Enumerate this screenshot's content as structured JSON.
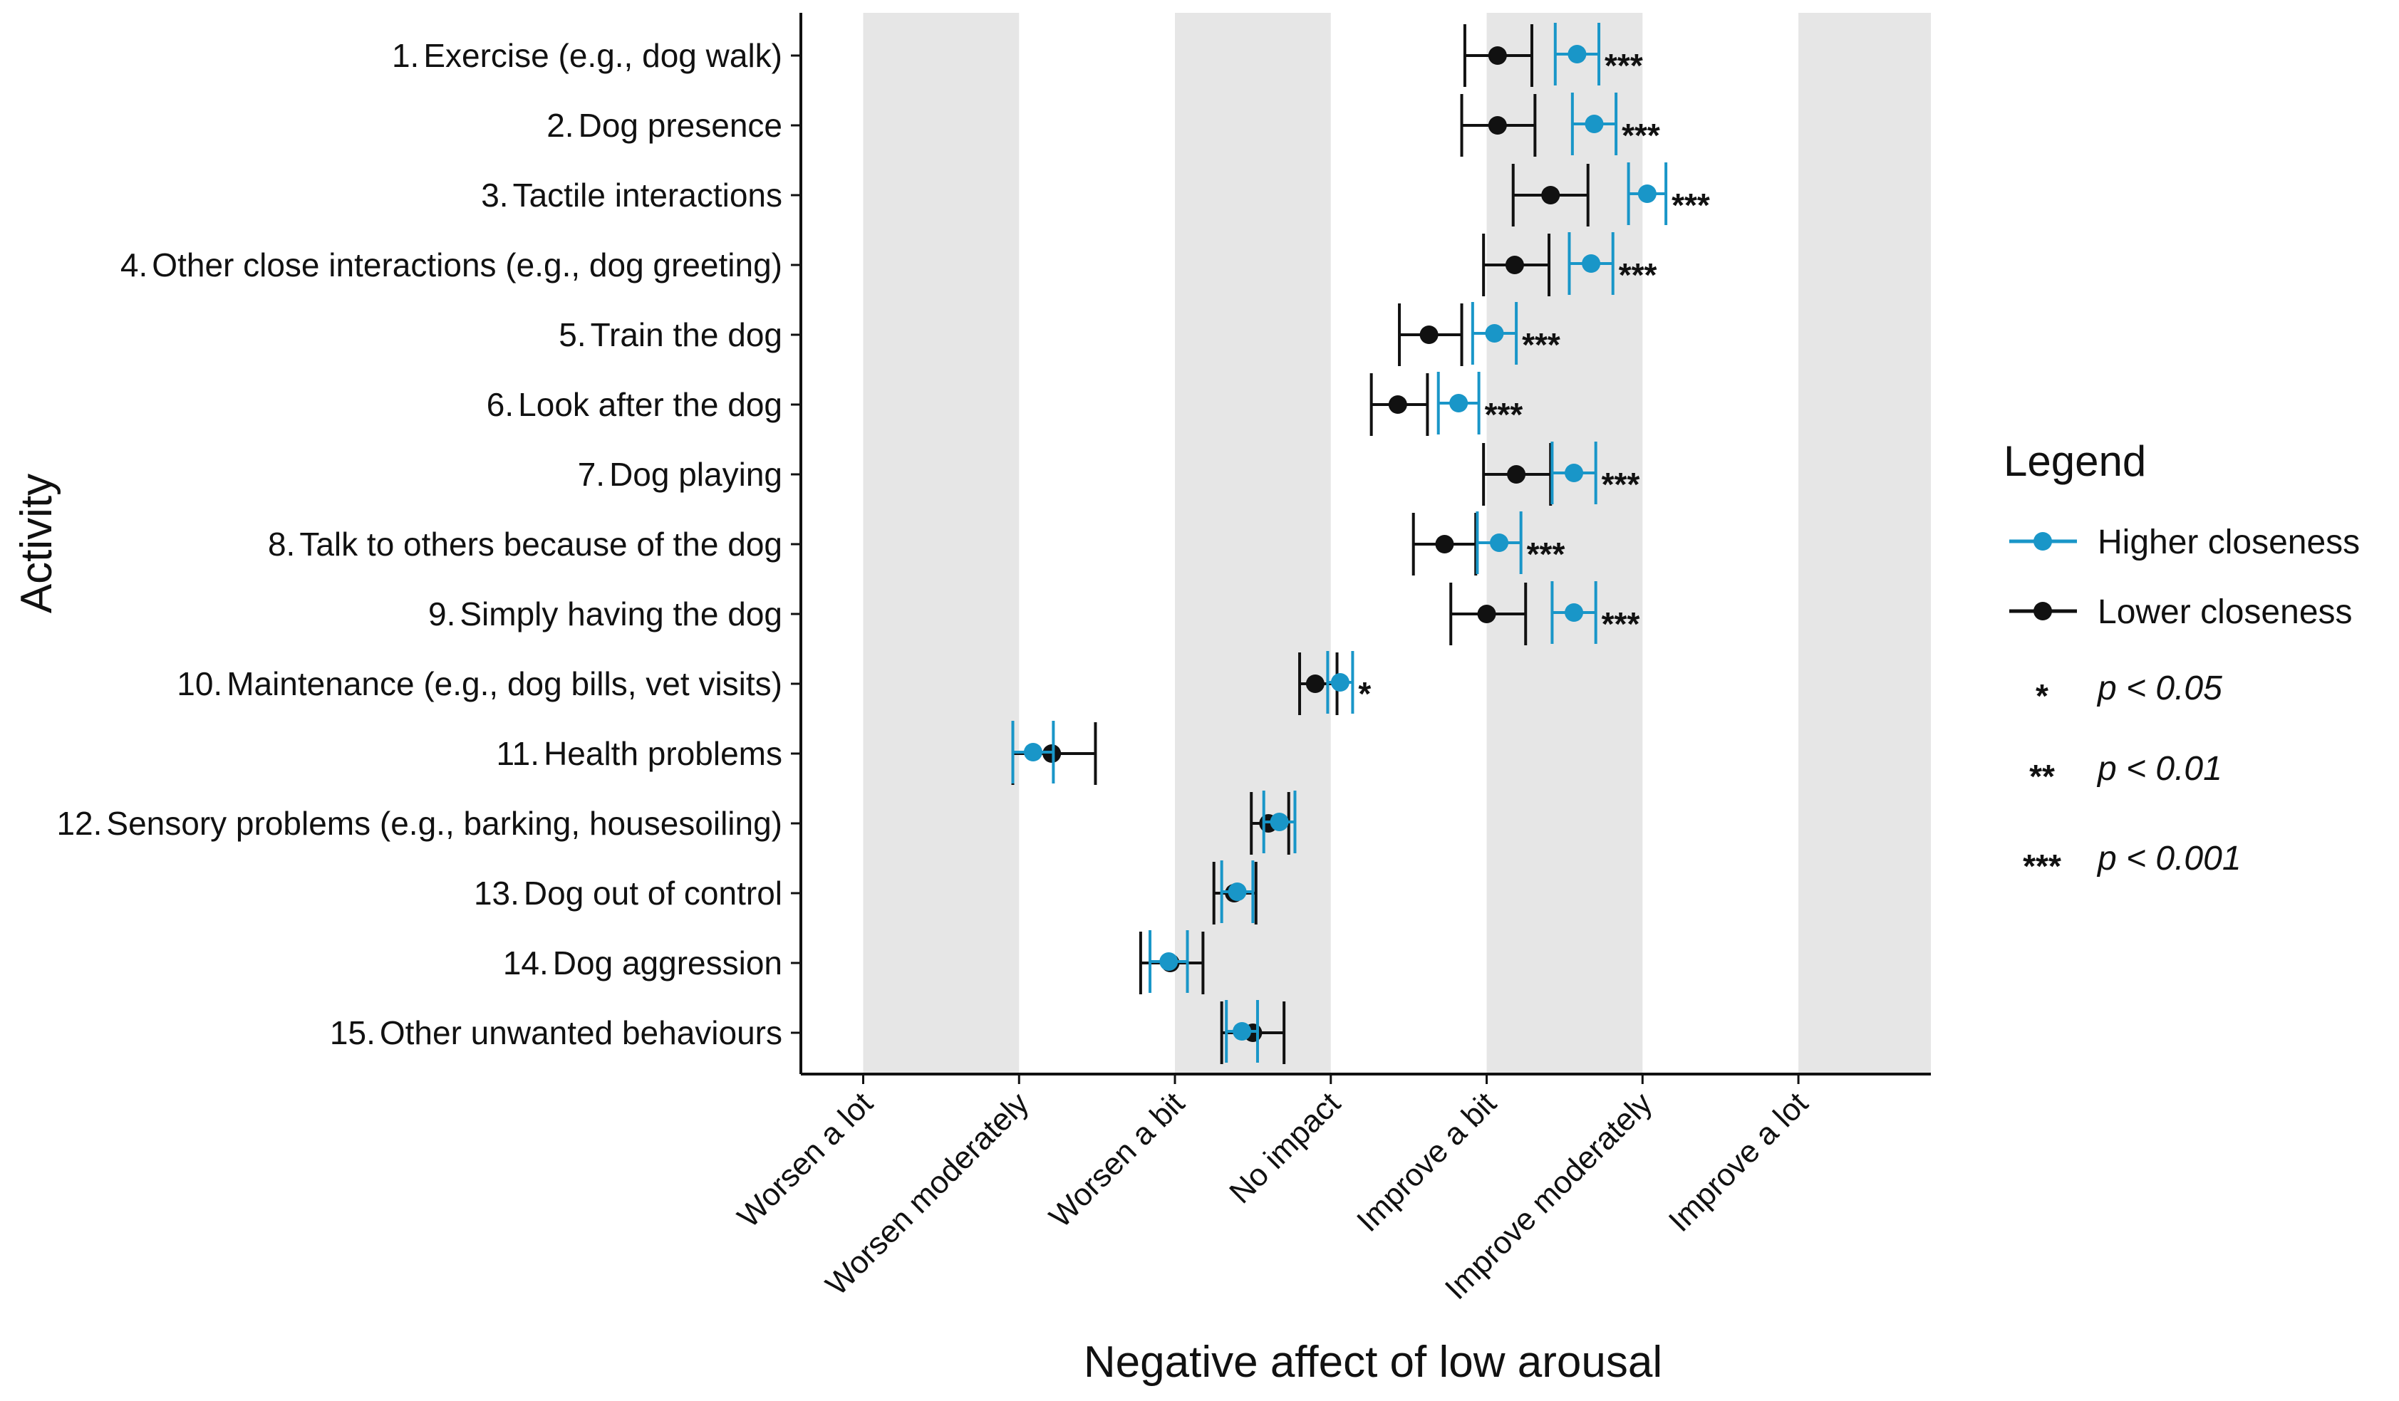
{
  "chart_data": {
    "type": "forest",
    "title": "",
    "xlabel": "Negative affect of low arousal",
    "ylabel": "Activity",
    "xlim": [
      0.6,
      7.85
    ],
    "x_tick_labels": [
      "Worsen a lot",
      "Worsen moderately",
      "Worsen a bit",
      "No impact",
      "Improve a bit",
      "Improve moderately",
      "Improve a lot"
    ],
    "x_tick_values": [
      1,
      2,
      3,
      4,
      5,
      6,
      7
    ],
    "categories": [
      {
        "num": "1.",
        "label": "Exercise (e.g., dog walk)"
      },
      {
        "num": "2.",
        "label": "Dog presence"
      },
      {
        "num": "3.",
        "label": "Tactile interactions"
      },
      {
        "num": "4.",
        "label": "Other close interactions (e.g., dog greeting)"
      },
      {
        "num": "5.",
        "label": "Train the dog"
      },
      {
        "num": "6.",
        "label": "Look after the dog"
      },
      {
        "num": "7.",
        "label": "Dog playing"
      },
      {
        "num": "8.",
        "label": "Talk to others because of the dog"
      },
      {
        "num": "9.",
        "label": "Simply having the dog"
      },
      {
        "num": "10.",
        "label": "Maintenance (e.g., dog bills, vet visits)"
      },
      {
        "num": "11.",
        "label": "Health problems"
      },
      {
        "num": "12.",
        "label": "Sensory problems (e.g., barking, housesoiling)"
      },
      {
        "num": "13.",
        "label": "Dog out of control"
      },
      {
        "num": "14.",
        "label": "Dog aggression"
      },
      {
        "num": "15.",
        "label": "Other unwanted behaviours"
      }
    ],
    "series": [
      {
        "name": "Lower closeness",
        "color": "#111111",
        "values": [
          5.07,
          5.07,
          5.41,
          5.18,
          4.63,
          4.43,
          5.19,
          4.73,
          5.0,
          3.9,
          2.21,
          3.6,
          3.38,
          2.97,
          3.5
        ],
        "ci_low": [
          4.86,
          4.84,
          5.17,
          4.98,
          4.44,
          4.26,
          4.98,
          4.53,
          4.77,
          3.8,
          1.96,
          3.49,
          3.25,
          2.78,
          3.3
        ],
        "ci_high": [
          5.29,
          5.31,
          5.65,
          5.4,
          4.84,
          4.62,
          5.41,
          4.93,
          5.25,
          4.04,
          2.49,
          3.73,
          3.52,
          3.18,
          3.7
        ]
      },
      {
        "name": "Higher closeness",
        "color": "#1996c8",
        "values": [
          5.58,
          5.69,
          6.03,
          5.67,
          5.05,
          4.82,
          5.56,
          5.08,
          5.56,
          4.06,
          2.09,
          3.67,
          3.4,
          2.96,
          3.43
        ],
        "ci_low": [
          5.44,
          5.55,
          5.91,
          5.53,
          4.91,
          4.69,
          5.42,
          4.94,
          5.42,
          3.98,
          1.96,
          3.57,
          3.3,
          2.84,
          3.33
        ],
        "ci_high": [
          5.72,
          5.83,
          6.15,
          5.81,
          5.19,
          4.95,
          5.7,
          5.22,
          5.7,
          4.14,
          2.22,
          3.77,
          3.5,
          3.08,
          3.53
        ]
      }
    ],
    "significance": [
      "***",
      "***",
      "***",
      "***",
      "***",
      "***",
      "***",
      "***",
      "***",
      "*",
      "",
      "",
      "",
      "",
      ""
    ],
    "shaded_bands": [
      [
        1,
        2
      ],
      [
        3,
        4
      ],
      [
        5,
        6
      ],
      [
        7,
        7.85
      ]
    ],
    "legend": {
      "title": "Legend",
      "position": "right",
      "entries": [
        {
          "label": "Higher closeness",
          "color": "#1996c8"
        },
        {
          "label": "Lower closeness",
          "color": "#111111"
        }
      ],
      "p_values": [
        {
          "stars": "*",
          "text": "p < 0.05"
        },
        {
          "stars": "**",
          "text": "p < 0.01"
        },
        {
          "stars": "***",
          "text": "p < 0.001"
        }
      ]
    }
  }
}
